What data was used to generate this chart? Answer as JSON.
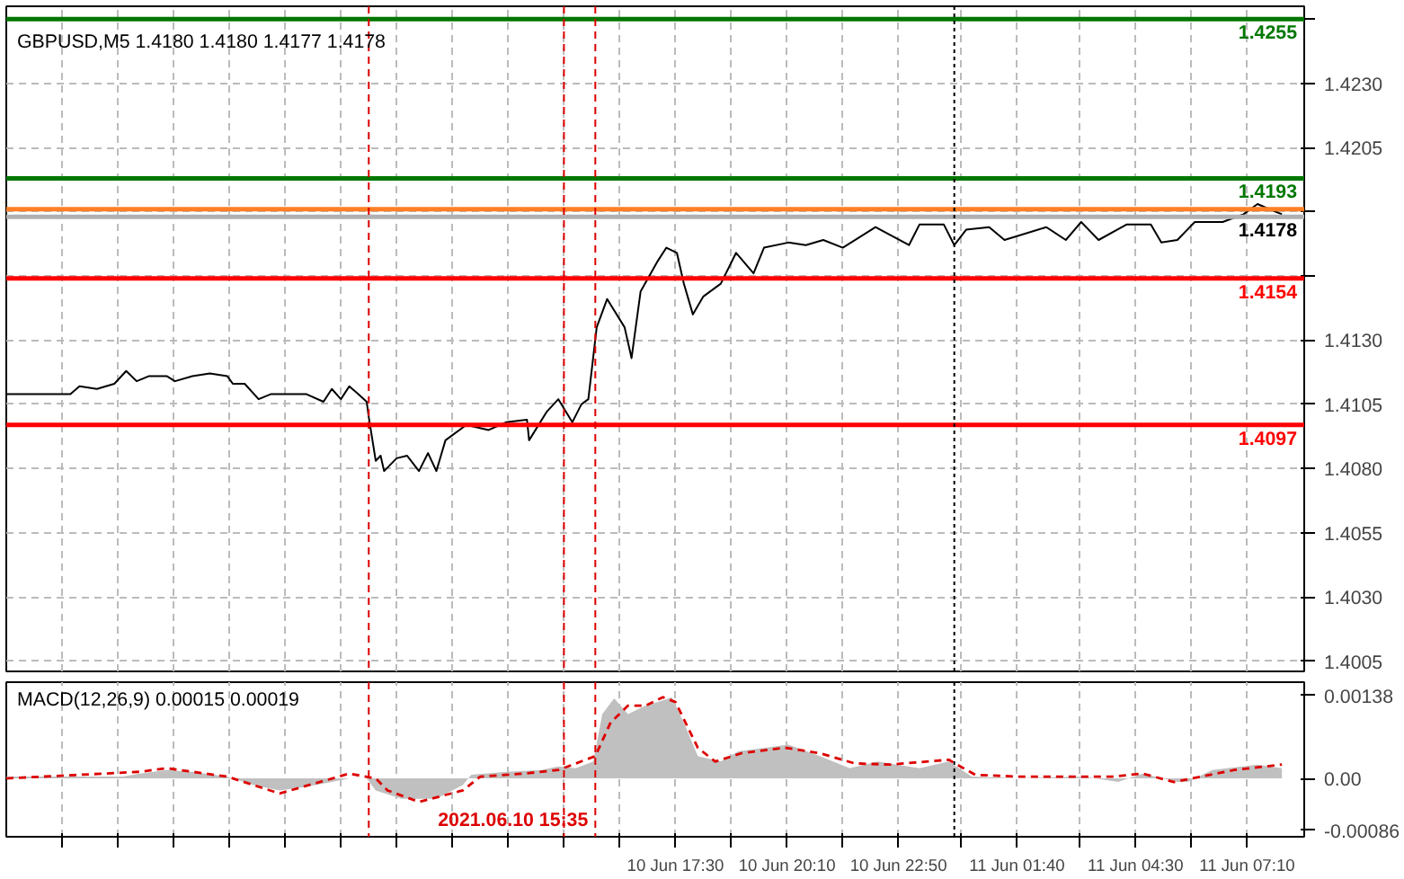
{
  "chart_data": [
    {
      "type": "line",
      "title": "GBPUSD,M5  1.4180 1.4180 1.4177 1.4178",
      "xlim": [
        "2021-06-10T01:30",
        "2021-06-11T08:32"
      ],
      "ylim": [
        1.4001,
        1.426
      ],
      "xticks": [
        {
          "value": "2021-06-10T02:50",
          "label": null
        },
        {
          "value": "2021-06-10T04:10",
          "label": null
        },
        {
          "value": "2021-06-10T05:30",
          "label": null
        },
        {
          "value": "2021-06-10T06:50",
          "label": null
        },
        {
          "value": "2021-06-10T08:10",
          "label": null
        },
        {
          "value": "2021-06-10T09:30",
          "label": null
        },
        {
          "value": "2021-06-10T10:50",
          "label": null
        },
        {
          "value": "2021-06-10T12:10",
          "label": null
        },
        {
          "value": "2021-06-10T13:30",
          "label": null
        },
        {
          "value": "2021-06-10T14:50",
          "label": null
        },
        {
          "value": "2021-06-10T16:10",
          "label": null
        },
        {
          "value": "2021-06-10T17:30",
          "label": null
        },
        {
          "value": "2021-06-10T18:50",
          "label": null
        },
        {
          "value": "2021-06-10T20:10",
          "label": null
        },
        {
          "value": "2021-06-10T21:30",
          "label": null
        },
        {
          "value": "2021-06-10T22:50",
          "label": null
        },
        {
          "value": "2021-06-11T00:20",
          "label": null
        },
        {
          "value": "2021-06-11T01:40",
          "label": null
        },
        {
          "value": "2021-06-11T03:10",
          "label": null
        },
        {
          "value": "2021-06-11T04:30",
          "label": null
        },
        {
          "value": "2021-06-11T05:50",
          "label": null
        },
        {
          "value": "2021-06-11T07:10",
          "label": null
        }
      ],
      "yticks": [
        {
          "value": 1.4005,
          "label": "1.4005"
        },
        {
          "value": 1.403,
          "label": "1.4030"
        },
        {
          "value": 1.4055,
          "label": "1.4055"
        },
        {
          "value": 1.408,
          "label": "1.4080"
        },
        {
          "value": 1.4105,
          "label": "1.4105"
        },
        {
          "value": 1.413,
          "label": "1.4130"
        },
        {
          "value": 1.4155,
          "label": null
        },
        {
          "value": 1.418,
          "label": null
        },
        {
          "value": 1.4205,
          "label": "1.4205"
        },
        {
          "value": 1.423,
          "label": "1.4230"
        },
        {
          "value": 1.4255,
          "label": null
        }
      ],
      "tick_labels": "y",
      "grid": true,
      "series": [
        {
          "color": "#000000",
          "x": [
            "2021-06-10T01:30",
            "2021-06-10T03:02",
            "2021-06-10T03:15",
            "2021-06-10T03:40",
            "2021-06-10T04:05",
            "2021-06-10T04:22",
            "2021-06-10T04:37",
            "2021-06-10T04:55",
            "2021-06-10T05:20",
            "2021-06-10T05:32",
            "2021-06-10T05:57",
            "2021-06-10T06:22",
            "2021-06-10T06:47",
            "2021-06-10T06:55",
            "2021-06-10T07:12",
            "2021-06-10T07:32",
            "2021-06-10T07:50",
            "2021-06-10T08:15",
            "2021-06-10T08:40",
            "2021-06-10T09:05",
            "2021-06-10T09:17",
            "2021-06-10T09:30",
            "2021-06-10T09:42",
            "2021-06-10T09:55",
            "2021-06-10T10:07",
            "2021-06-10T10:10",
            "2021-06-10T10:20",
            "2021-06-10T10:27",
            "2021-06-10T10:32",
            "2021-06-10T10:50",
            "2021-06-10T11:05",
            "2021-06-10T11:22",
            "2021-06-10T11:35",
            "2021-06-10T11:47",
            "2021-06-10T12:00",
            "2021-06-10T12:30",
            "2021-06-10T13:02",
            "2021-06-10T13:27",
            "2021-06-10T13:57",
            "2021-06-10T14:00",
            "2021-06-10T14:25",
            "2021-06-10T14:42",
            "2021-06-10T15:02",
            "2021-06-10T15:15",
            "2021-06-10T15:25",
            "2021-06-10T15:37",
            "2021-06-10T15:52",
            "2021-06-10T16:17",
            "2021-06-10T16:27",
            "2021-06-10T16:40",
            "2021-06-10T17:05",
            "2021-06-10T17:17",
            "2021-06-10T17:32",
            "2021-06-10T17:42",
            "2021-06-10T17:55",
            "2021-06-10T18:10",
            "2021-06-10T18:35",
            "2021-06-10T18:57",
            "2021-06-10T19:22",
            "2021-06-10T19:37",
            "2021-06-10T20:12",
            "2021-06-10T20:37",
            "2021-06-10T21:02",
            "2021-06-10T21:30",
            "2021-06-10T22:17",
            "2021-06-10T23:05",
            "2021-06-10T23:20",
            "2021-06-10T23:55",
            "2021-06-11T00:10",
            "2021-06-11T00:27",
            "2021-06-11T01:00",
            "2021-06-11T01:22",
            "2021-06-11T02:22",
            "2021-06-11T02:50",
            "2021-06-11T03:12",
            "2021-06-11T03:37",
            "2021-06-11T04:17",
            "2021-06-11T04:52",
            "2021-06-11T05:07",
            "2021-06-11T05:30",
            "2021-06-11T05:55",
            "2021-06-11T06:35",
            "2021-06-11T07:05",
            "2021-06-11T07:25",
            "2021-06-11T07:42",
            "2021-06-11T08:00"
          ],
          "values": [
            1.4109,
            1.4109,
            1.4112,
            1.4111,
            1.4113,
            1.4118,
            1.4114,
            1.4116,
            1.4116,
            1.4114,
            1.4116,
            1.4117,
            1.4116,
            1.4113,
            1.4113,
            1.4107,
            1.4109,
            1.4109,
            1.4109,
            1.4106,
            1.4111,
            1.4107,
            1.4112,
            1.4109,
            1.4106,
            1.41,
            1.4083,
            1.4085,
            1.4079,
            1.4084,
            1.4085,
            1.4079,
            1.4086,
            1.4079,
            1.4091,
            1.4097,
            1.4095,
            1.4098,
            1.4099,
            1.4091,
            1.4102,
            1.4107,
            1.4098,
            1.4105,
            1.4107,
            1.4135,
            1.4146,
            1.4135,
            1.4123,
            1.4149,
            1.4161,
            1.4166,
            1.4164,
            1.4152,
            1.414,
            1.4147,
            1.4152,
            1.4164,
            1.4156,
            1.4166,
            1.4168,
            1.4167,
            1.4169,
            1.4166,
            1.4174,
            1.4167,
            1.4175,
            1.4175,
            1.4167,
            1.4173,
            1.4174,
            1.4169,
            1.4174,
            1.4169,
            1.4176,
            1.4169,
            1.4175,
            1.4175,
            1.4168,
            1.4169,
            1.4176,
            1.4176,
            1.4179,
            1.4183,
            1.4181,
            1.4179
          ]
        }
      ],
      "ref_lines": [
        {
          "axis": "y",
          "value": 1.4255,
          "label": "1.4255",
          "color": "#007700"
        },
        {
          "axis": "y",
          "value": 1.4193,
          "label": "1.4193",
          "color": "#007700"
        },
        {
          "axis": "y",
          "value": 1.4181,
          "color": "#ff7f27"
        },
        {
          "axis": "y",
          "value": 1.4178,
          "label": "1.4178",
          "color": "#b0b0b0"
        },
        {
          "axis": "y",
          "value": 1.4154,
          "label": "1.4154",
          "color": "#ff0000"
        },
        {
          "axis": "y",
          "value": 1.4097,
          "label": "1.4097",
          "color": "#ff0000"
        },
        {
          "axis": "x",
          "value": "2021-06-10T10:10",
          "color": "#dd0000",
          "line_style": "dashed"
        },
        {
          "axis": "x",
          "value": "2021-06-10T14:50",
          "color": "#dd0000",
          "line_style": "dashed"
        },
        {
          "axis": "x",
          "value": "2021-06-10T15:35",
          "color": "#dd0000",
          "line_style": "dashed"
        },
        {
          "axis": "x",
          "value": "2021-06-11T00:10",
          "color": "#000000",
          "line_style": "dotted"
        }
      ]
    },
    {
      "type": "area",
      "title": "MACD(12,26,9) 0.00015 0.00019",
      "xlim": [
        "2021-06-10T01:30",
        "2021-06-11T08:32"
      ],
      "ylim": [
        -0.00097,
        0.0016
      ],
      "xticks": [
        {
          "value": "2021-06-10T02:50",
          "label": null
        },
        {
          "value": "2021-06-10T04:10",
          "label": null
        },
        {
          "value": "2021-06-10T05:30",
          "label": null
        },
        {
          "value": "2021-06-10T06:50",
          "label": null
        },
        {
          "value": "2021-06-10T08:10",
          "label": null
        },
        {
          "value": "2021-06-10T09:30",
          "label": null
        },
        {
          "value": "2021-06-10T10:50",
          "label": null
        },
        {
          "value": "2021-06-10T12:10",
          "label": null
        },
        {
          "value": "2021-06-10T13:30",
          "label": null
        },
        {
          "value": "2021-06-10T14:50",
          "label": null
        },
        {
          "value": "2021-06-10T16:10",
          "label": null
        },
        {
          "value": "2021-06-10T17:30",
          "label": "10 Jun 17:30"
        },
        {
          "value": "2021-06-10T18:50",
          "label": null
        },
        {
          "value": "2021-06-10T20:10",
          "label": "10 Jun 20:10"
        },
        {
          "value": "2021-06-10T21:30",
          "label": null
        },
        {
          "value": "2021-06-10T22:50",
          "label": "10 Jun 22:50"
        },
        {
          "value": "2021-06-11T00:20",
          "label": null
        },
        {
          "value": "2021-06-11T01:40",
          "label": "11 Jun 01:40"
        },
        {
          "value": "2021-06-11T03:10",
          "label": null
        },
        {
          "value": "2021-06-11T04:30",
          "label": "11 Jun 04:30"
        },
        {
          "value": "2021-06-11T05:50",
          "label": null
        },
        {
          "value": "2021-06-11T07:10",
          "label": "11 Jun 07:10"
        }
      ],
      "yticks": [
        0.00138,
        {
          "value": 0,
          "label": "0.00"
        },
        -0.00086
      ],
      "grid": "x",
      "series": [
        {
          "type": "area",
          "color": "#c0c0c0",
          "x": [
            "2021-06-10T01:30",
            "2021-06-10T04:17",
            "2021-06-10T04:42",
            "2021-06-10T05:20",
            "2021-06-10T05:57",
            "2021-06-10T06:47",
            "2021-06-10T07:25",
            "2021-06-10T08:02",
            "2021-06-10T08:40",
            "2021-06-10T09:17",
            "2021-06-10T09:42",
            "2021-06-10T10:07",
            "2021-06-10T10:20",
            "2021-06-10T10:57",
            "2021-06-10T11:47",
            "2021-06-10T12:25",
            "2021-06-10T12:37",
            "2021-06-10T13:27",
            "2021-06-10T14:17",
            "2021-06-10T14:42",
            "2021-06-10T15:07",
            "2021-06-10T15:32",
            "2021-06-10T15:45",
            "2021-06-10T16:02",
            "2021-06-10T16:22",
            "2021-06-10T16:47",
            "2021-06-10T17:05",
            "2021-06-10T17:25",
            "2021-06-10T17:45",
            "2021-06-10T18:02",
            "2021-06-10T18:35",
            "2021-06-10T19:00",
            "2021-06-10T20:12",
            "2021-06-10T20:57",
            "2021-06-10T21:40",
            "2021-06-10T22:20",
            "2021-06-10T23:20",
            "2021-06-11T00:02",
            "2021-06-11T00:35",
            "2021-06-11T01:42",
            "2021-06-11T03:15",
            "2021-06-11T04:05",
            "2021-06-11T04:40",
            "2021-06-11T05:30",
            "2021-06-11T05:45",
            "2021-06-11T06:20",
            "2021-06-11T07:25",
            "2021-06-11T08:00"
          ],
          "values": [
            3e-05,
            3e-05,
            8e-05,
            0.00014,
            0.00011,
            3e-05,
            -0.00011,
            -0.0002,
            -0.00014,
            -6e-05,
            0,
            0,
            -0.0002,
            -0.00034,
            -0.00034,
            -0.00011,
            6e-05,
            0.00011,
            0.00014,
            0.0002,
            0.00017,
            0.00028,
            0.00107,
            0.00133,
            0.00107,
            0.00121,
            0.00127,
            0.00135,
            0.00085,
            0.00037,
            0.00028,
            0.00045,
            0.00056,
            0.00037,
            0.00017,
            0.00028,
            0.00017,
            0.00028,
            3e-05,
            0,
            3e-05,
            -6e-05,
            8e-05,
            -6e-05,
            -6e-05,
            0.00014,
            0.00023,
            0.00017
          ]
        },
        {
          "type": "line",
          "color": "#dd0000",
          "line_style": "dashed",
          "x": [
            "2021-06-10T01:30",
            "2021-06-10T04:42",
            "2021-06-10T05:20",
            "2021-06-10T06:47",
            "2021-06-10T08:02",
            "2021-06-10T09:42",
            "2021-06-10T10:20",
            "2021-06-10T10:37",
            "2021-06-10T11:22",
            "2021-06-10T12:25",
            "2021-06-10T12:50",
            "2021-06-10T13:52",
            "2021-06-10T14:42",
            "2021-06-10T15:35",
            "2021-06-10T15:57",
            "2021-06-10T16:22",
            "2021-06-10T16:47",
            "2021-06-10T17:12",
            "2021-06-10T17:30",
            "2021-06-10T18:02",
            "2021-06-10T18:27",
            "2021-06-10T19:05",
            "2021-06-10T20:07",
            "2021-06-10T20:57",
            "2021-06-10T21:47",
            "2021-06-10T22:37",
            "2021-06-11T00:02",
            "2021-06-11T00:40",
            "2021-06-11T01:42",
            "2021-06-11T03:57",
            "2021-06-11T04:40",
            "2021-06-11T05:25",
            "2021-06-11T06:52",
            "2021-06-11T08:00"
          ],
          "values": [
            0,
            0.00011,
            0.00017,
            3e-05,
            -0.00025,
            8e-05,
            0,
            -0.0002,
            -0.00039,
            -0.0002,
            3e-05,
            8e-05,
            0.00014,
            0.00037,
            0.00093,
            0.00121,
            0.00121,
            0.00135,
            0.00127,
            0.00051,
            0.00028,
            0.00042,
            0.00051,
            0.00042,
            0.00025,
            0.00023,
            0.00031,
            6e-05,
            3e-05,
            3e-05,
            8e-05,
            -6e-05,
            0.00014,
            0.00023
          ]
        }
      ],
      "ref_lines": [
        {
          "axis": "x",
          "value": "2021-06-10T10:10",
          "color": "#dd0000",
          "line_style": "dashed"
        },
        {
          "axis": "x",
          "value": "2021-06-10T14:50",
          "color": "#dd0000",
          "line_style": "dashed"
        },
        {
          "axis": "x",
          "value": "2021-06-10T15:35",
          "label": "2021.06.10 15:35",
          "color": "#dd0000",
          "line_style": "dashed"
        },
        {
          "axis": "x",
          "value": "2021-06-11T00:10",
          "color": "#000000",
          "line_style": "dotted"
        }
      ]
    }
  ]
}
